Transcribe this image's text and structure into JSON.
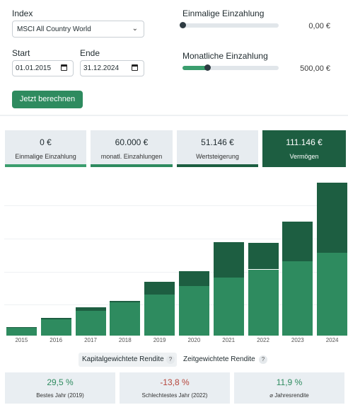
{
  "form": {
    "index_label": "Index",
    "index_value": "MSCI All Country World",
    "start_label": "Start",
    "start_value": "01.01.2015",
    "end_label": "Ende",
    "end_value": "31.12.2024",
    "calculate_label": "Jetzt berechnen",
    "one_time_label": "Einmalige Einzahlung",
    "one_time_value": "0,00 €",
    "one_time_level": 0,
    "monthly_label": "Monatliche Einzahlung",
    "monthly_value": "500,00 €",
    "monthly_level": 0.26
  },
  "summary": [
    {
      "value": "0 €",
      "label": "Einmalige Einzahlung",
      "color": "#3b9e6e"
    },
    {
      "value": "60.000 €",
      "label": "monatl. Einzahlungen",
      "color": "#2e8b5f"
    },
    {
      "value": "51.146 €",
      "label": "Wertsteigerung",
      "color": "#1c5e40"
    },
    {
      "value": "111.146 €",
      "label": "Vermögen",
      "color": "#1d5e41"
    }
  ],
  "chart_data": {
    "type": "bar",
    "stacked": true,
    "categories": [
      "2015",
      "2016",
      "2017",
      "2018",
      "2019",
      "2020",
      "2021",
      "2022",
      "2023",
      "2024"
    ],
    "series": [
      {
        "name": "monatl. Einzahlungen",
        "color": "#2e8b5f",
        "values": [
          6000,
          12000,
          18000,
          24000,
          30000,
          36000,
          42000,
          48000,
          54000,
          60000
        ]
      },
      {
        "name": "Wertsteigerung",
        "color": "#1d5e41",
        "values": [
          -350,
          580,
          2600,
          1300,
          9200,
          10700,
          26000,
          19200,
          28700,
          51146
        ]
      }
    ],
    "ylim": [
      0,
      115000
    ],
    "grid": true,
    "legend": "none"
  },
  "tabs": [
    {
      "label": "Kapitalgewichtete Rendite",
      "help": "?"
    },
    {
      "label": "Zeitgewichtete Rendite",
      "help": "?"
    }
  ],
  "stats": [
    {
      "value": "29,5 %",
      "label": "Bestes Jahr (2019)",
      "color": "#2e8b5f"
    },
    {
      "value": "-13,8 %",
      "label": "Schlechtestes Jahr (2022)",
      "color": "#b5443a"
    },
    {
      "value": "11,9 %",
      "label": "⌀ Jahresrendite",
      "color": "#2e8b5f"
    }
  ]
}
